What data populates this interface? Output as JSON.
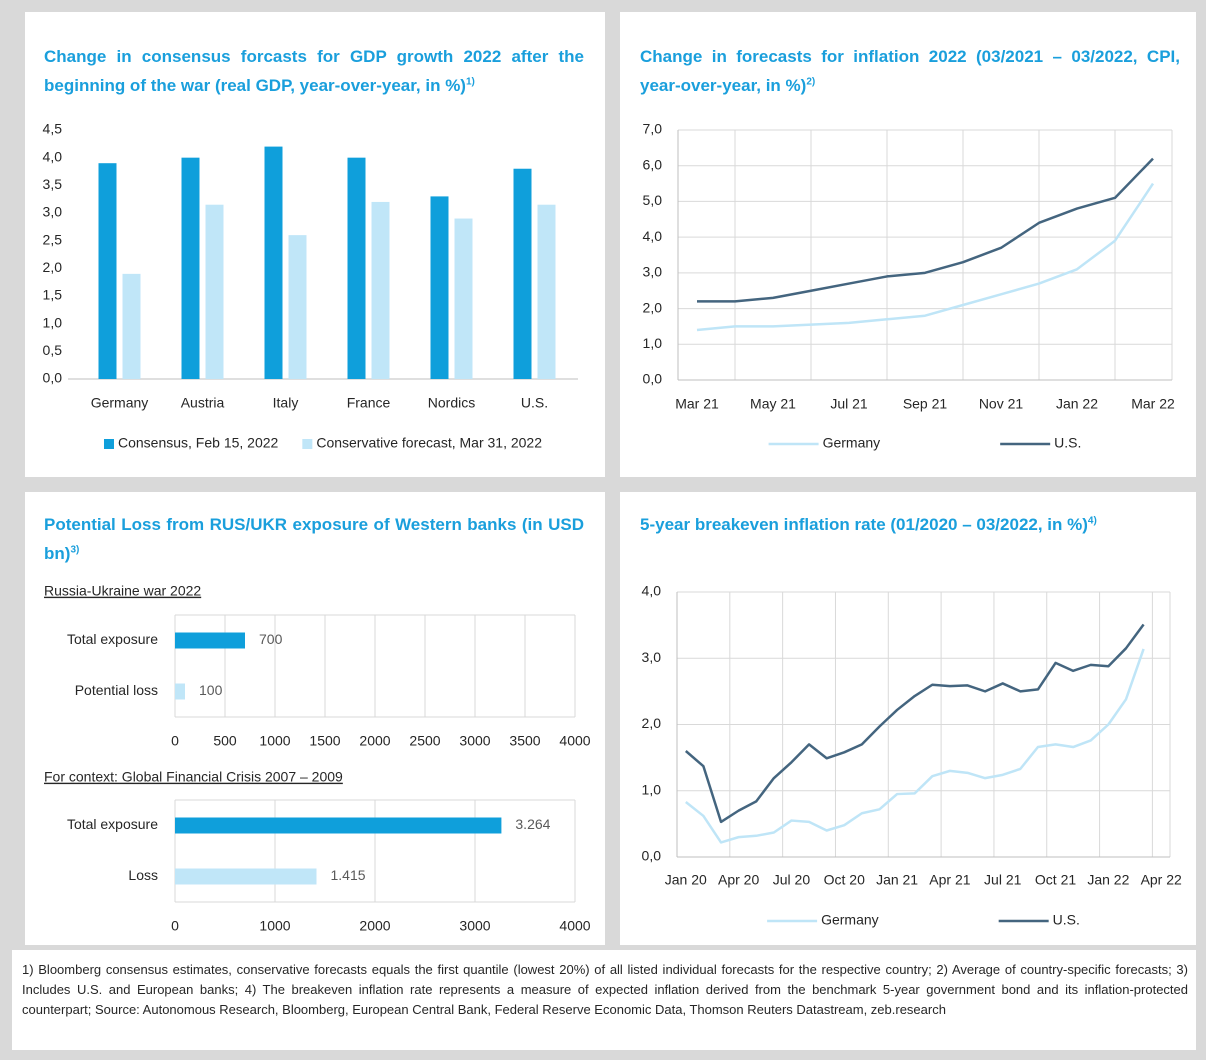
{
  "chart_data": [
    {
      "type": "bar",
      "title": "Change in consensus forcasts for GDP growth 2022 after the beginning of the war (real GDP, year-over-year, in %)",
      "title_note": "1)",
      "categories": [
        "Germany",
        "Austria",
        "Italy",
        "France",
        "Nordics",
        "U.S."
      ],
      "series": [
        {
          "name": "Consensus, Feb 15, 2022",
          "color": "#0f9fdb",
          "values": [
            3.9,
            4.0,
            4.2,
            4.0,
            3.3,
            3.8
          ]
        },
        {
          "name": "Conservative forecast, Mar 31, 2022",
          "color": "#c0e6f8",
          "values": [
            1.9,
            3.15,
            2.6,
            3.2,
            2.9,
            3.15
          ]
        }
      ],
      "ylim": [
        0,
        4.5
      ],
      "yticks": [
        {
          "value": 0,
          "label": "0,0"
        },
        {
          "value": 0.5,
          "label": "0,5"
        },
        {
          "value": 1,
          "label": "1,0"
        },
        {
          "value": 1.5,
          "label": "1,5"
        },
        {
          "value": 2,
          "label": "2,0"
        },
        {
          "value": 2.5,
          "label": "2,5"
        },
        {
          "value": 3,
          "label": "3,0"
        },
        {
          "value": 3.5,
          "label": "3,5"
        },
        {
          "value": 4,
          "label": "4,0"
        },
        {
          "value": 4.5,
          "label": "4,5"
        }
      ],
      "grid": false,
      "legend": "bottom"
    },
    {
      "type": "line",
      "title": "Change in forecasts for inflation 2022 (03/2021 – 03/2022, CPI, year-over-year, in %)",
      "title_note": "2)",
      "categories": [
        "Mar 21",
        null,
        "May 21",
        null,
        "Jul 21",
        null,
        "Sep 21",
        null,
        "Nov 21",
        null,
        "Jan 22",
        null,
        "Mar 22"
      ],
      "series": [
        {
          "name": "Germany",
          "color": "#bfe5f7",
          "values": [
            1.4,
            1.5,
            1.5,
            1.55,
            1.6,
            1.7,
            1.8,
            2.1,
            2.4,
            2.7,
            3.1,
            3.9,
            5.5
          ]
        },
        {
          "name": "U.S.",
          "color": "#44657f",
          "values": [
            2.2,
            2.2,
            2.3,
            2.5,
            2.7,
            2.9,
            3.0,
            3.3,
            3.7,
            4.4,
            4.8,
            5.1,
            6.2
          ]
        }
      ],
      "ylim": [
        0,
        7
      ],
      "yticks": [
        {
          "value": 0,
          "label": "0,0"
        },
        {
          "value": 1,
          "label": "1,0"
        },
        {
          "value": 2,
          "label": "2,0"
        },
        {
          "value": 3,
          "label": "3,0"
        },
        {
          "value": 4,
          "label": "4,0"
        },
        {
          "value": 5,
          "label": "5,0"
        },
        {
          "value": 6,
          "label": "6,0"
        },
        {
          "value": 7,
          "label": "7,0"
        }
      ],
      "grid": true,
      "legend": "bottom"
    },
    {
      "type": "hbar",
      "title": "Potential Loss from RUS/UKR exposure of Western banks (in USD bn)",
      "title_note": "3)",
      "subtitle": "Russia-Ukraine war 2022",
      "categories": [
        "Total exposure",
        "Potential loss"
      ],
      "values": [
        700,
        100
      ],
      "colors": [
        "#0f9fdb",
        "#c0e6f8"
      ],
      "xlim": [
        0,
        4000
      ],
      "xticks": [
        0,
        500,
        1000,
        1500,
        2000,
        2500,
        3000,
        3500,
        4000
      ],
      "grid": true
    },
    {
      "type": "hbar",
      "subtitle": "For context: Global Financial Crisis 2007 – 2009",
      "categories": [
        "Total exposure",
        "Loss"
      ],
      "values": [
        3264,
        1415
      ],
      "value_labels": [
        "3.264",
        "1.415"
      ],
      "colors": [
        "#0f9fdb",
        "#c0e6f8"
      ],
      "xlim": [
        0,
        4000
      ],
      "xticks": [
        0,
        1000,
        2000,
        3000,
        4000
      ],
      "grid": true
    },
    {
      "type": "line",
      "title": "5-year breakeven inflation rate (01/2020 – 03/2022, in %)",
      "title_note": "4)",
      "categories": [
        "Jan 20",
        null,
        null,
        "Apr 20",
        null,
        null,
        "Jul 20",
        null,
        null,
        "Oct 20",
        null,
        null,
        "Jan 21",
        null,
        null,
        "Apr 21",
        null,
        null,
        "Jul 21",
        null,
        null,
        "Oct 21",
        null,
        null,
        "Jan 22",
        null,
        null,
        "Apr 22"
      ],
      "series": [
        {
          "name": "Germany",
          "color": "#bfe5f7",
          "values": [
            0.83,
            0.62,
            0.22,
            0.3,
            0.32,
            0.37,
            0.55,
            0.53,
            0.4,
            0.48,
            0.66,
            0.72,
            0.95,
            0.96,
            1.22,
            1.3,
            1.27,
            1.19,
            1.24,
            1.33,
            1.66,
            1.7,
            1.66,
            1.76,
            2.0,
            2.38,
            3.14,
            null
          ]
        },
        {
          "name": "U.S.",
          "color": "#44657f",
          "values": [
            1.6,
            1.37,
            0.53,
            0.7,
            0.84,
            1.19,
            1.43,
            1.7,
            1.49,
            1.58,
            1.7,
            1.97,
            2.22,
            2.43,
            2.6,
            2.58,
            2.59,
            2.5,
            2.62,
            2.5,
            2.53,
            2.93,
            2.81,
            2.9,
            2.88,
            3.15,
            3.51,
            null
          ]
        }
      ],
      "ylim": [
        0,
        4
      ],
      "yticks": [
        {
          "value": 0,
          "label": "0,0"
        },
        {
          "value": 1,
          "label": "1,0"
        },
        {
          "value": 2,
          "label": "2,0"
        },
        {
          "value": 3,
          "label": "3,0"
        },
        {
          "value": 4,
          "label": "4,0"
        }
      ],
      "grid": true,
      "legend": "bottom"
    }
  ],
  "footnote": "1) Bloomberg consensus estimates, conservative forecasts equals the first quantile (lowest 20%) of all listed individual forecasts for the respective country; 2) Average of country-specific forecasts; 3) Includes U.S. and European banks; 4) The breakeven inflation rate represents a measure of expected inflation derived from the benchmark 5-year government bond and its inflation-protected counterpart; Source: Autonomous Research, Bloomberg, European Central Bank, Federal Reserve Economic Data, Thomson Reuters Datastream, zeb.research"
}
